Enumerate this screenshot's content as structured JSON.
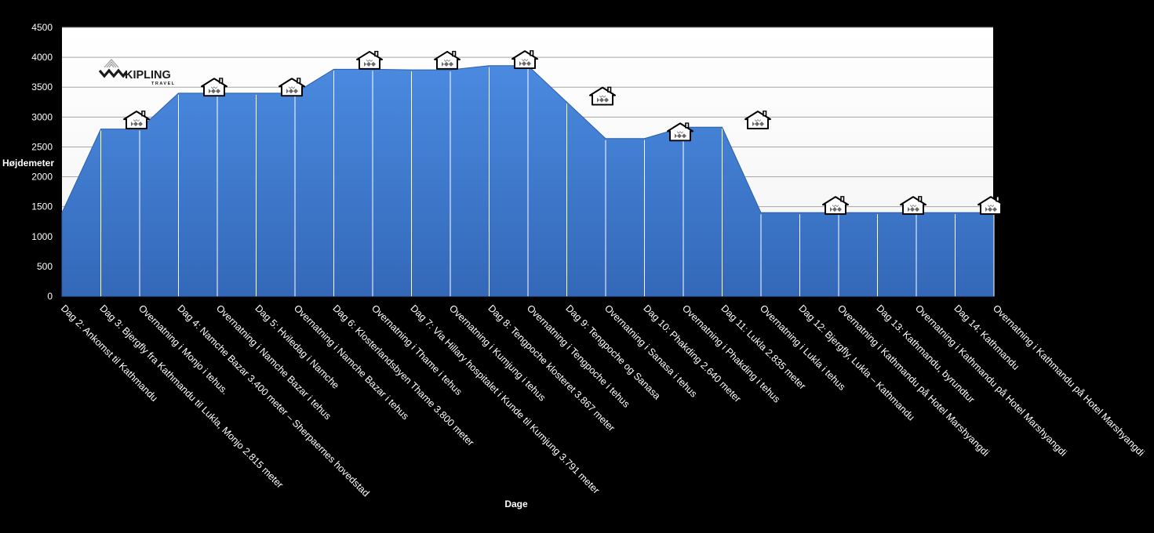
{
  "chart_data": {
    "type": "area",
    "title": "",
    "xlabel": "Dage",
    "ylabel": "Højdemeter",
    "ylim": [
      0,
      4500
    ],
    "yticks": [
      0,
      500,
      1000,
      1500,
      2000,
      2500,
      3000,
      3500,
      4000,
      4500
    ],
    "grid": true,
    "categories": [
      "Dag 2: Ankomst til Kathmandu",
      "Dag 3: Bjergfly fra Kathmandu til Lukla, Monjo 2.815 meter",
      "Overnatning i Monjo i tehus.",
      "Dag 4: Namche Bazar 3.400 meter – Sherpaernes hovedstad",
      "Overnatning i Namche Bazar i tehus",
      "Dag 5: Hviledag i Namche",
      "Overnatning i Namche Bazar i tehus",
      "Dag 6: Klosterlandsbyen Thame 3.800 meter",
      "Overnatning i Thame i tehus",
      "Dag 7: Via Hillary hospitalet i Kunde til Kumjung 3.791 meter",
      "Overnatning i Kumjung i tehus",
      "Dag 8: Tengpoche klosteret 3.867 meter",
      "Overnatning i Tengpoche i tehus",
      "Dag 9: Tengpoche og Sanasa",
      "Overnatning i Sanasa i tehus",
      "Dag 10: Phakding 2.640 meter",
      "Overnatning i Phakding i tehus",
      "Dag 11: Lukla 2.835 meter",
      "Overnatning i Lukla i tehus",
      "Dag 12: Bjergfly, Lukla – Kathmandu",
      "Overnatning i Kathmandu på Hotel Marshyangdi",
      "Dag 13: Kathmandu, byrundtur",
      "Overnatning i Kathmandu på Hotel Marshyangdi",
      "Dag 14: Kathmandu",
      "Overnatning i Kathmandu på Hotel Marshyangdi"
    ],
    "values": [
      1400,
      2800,
      2800,
      3400,
      3400,
      3400,
      3400,
      3800,
      3800,
      3790,
      3790,
      3860,
      3860,
      3250,
      2640,
      2640,
      2830,
      2830,
      1400,
      1400,
      1400,
      1400,
      1400,
      1400,
      1400
    ],
    "series_color": "#3f7fd6",
    "markers": {
      "icon": "tehouse-icon",
      "y": [
        2950,
        3500,
        3500,
        3950,
        3950,
        3960,
        3350,
        2750,
        2950,
        1520,
        1520,
        1520
      ]
    }
  },
  "logo": {
    "name": "KIPLING",
    "tagline": "TRAVEL"
  }
}
